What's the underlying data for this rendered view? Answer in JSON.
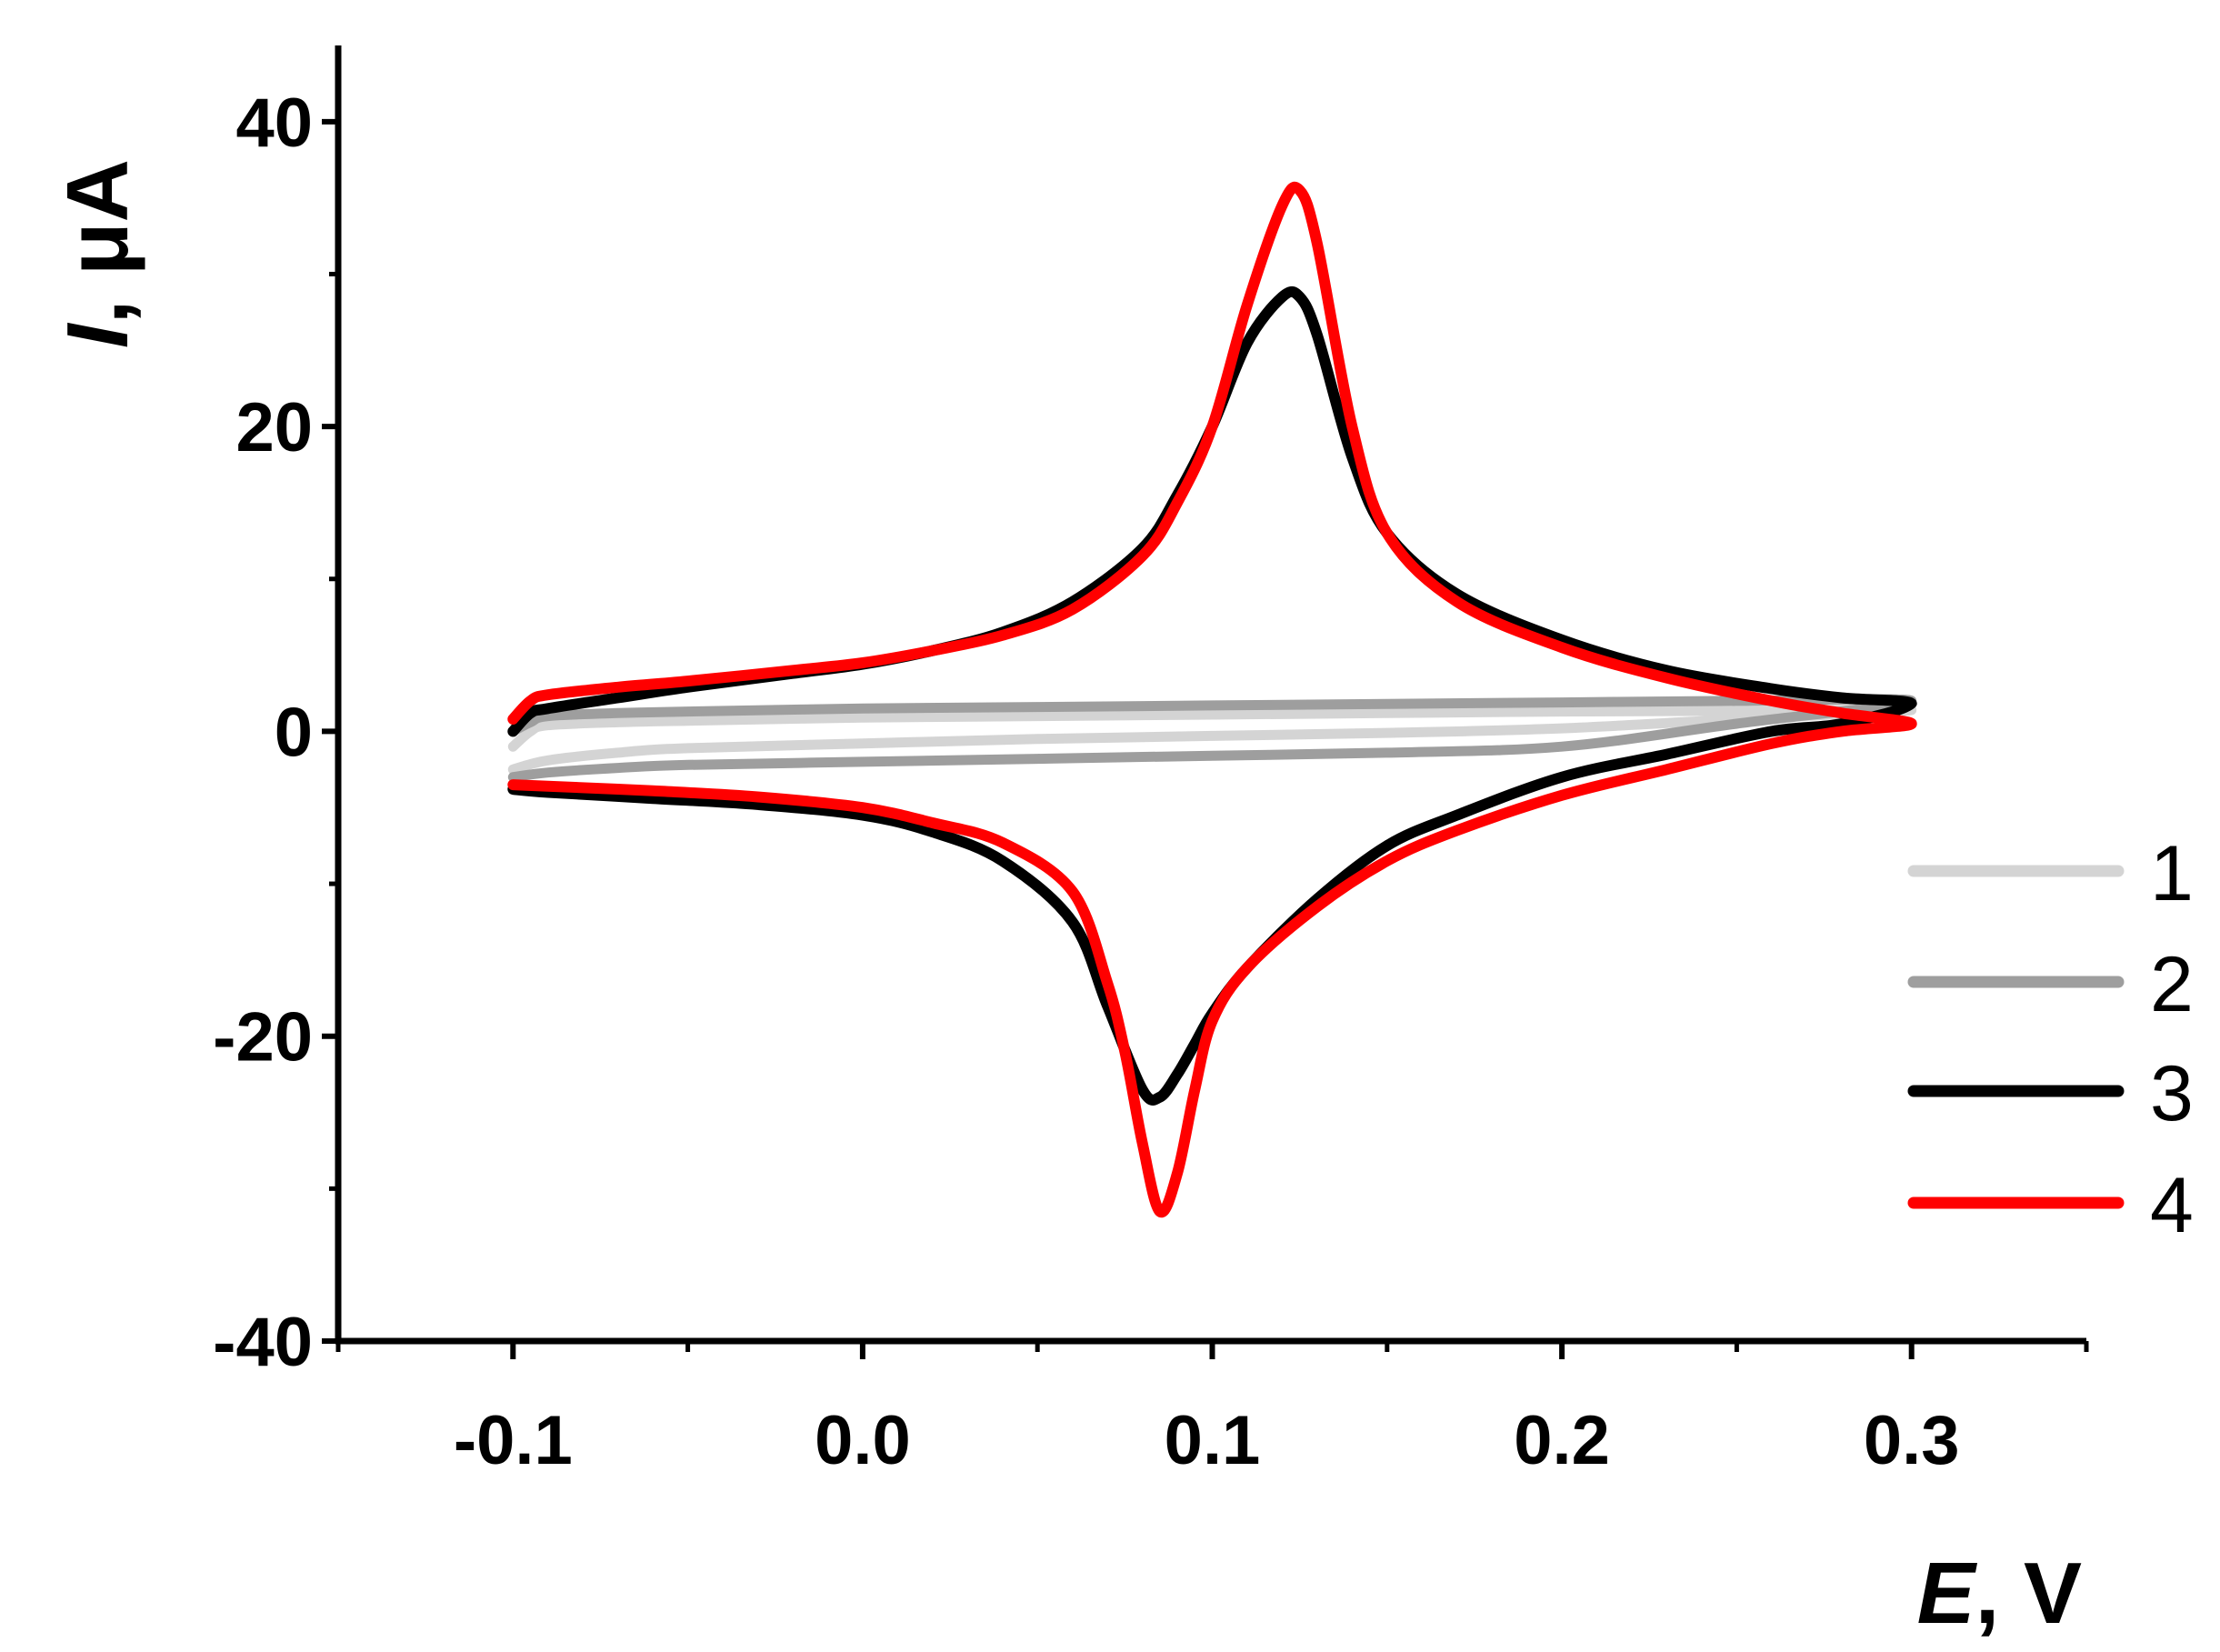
{
  "chart_data": {
    "type": "line",
    "title": "",
    "xlabel_symbol": "E",
    "xlabel_unit": ", V",
    "ylabel_symbol": "I",
    "ylabel_unit": ", μA",
    "xlim": [
      -0.15,
      0.35
    ],
    "ylim": [
      -40,
      45
    ],
    "x_ticks": [
      -0.1,
      0.0,
      0.1,
      0.2,
      0.3
    ],
    "x_tick_labels": [
      "-0.1",
      "0.0",
      "0.1",
      "0.2",
      "0.3"
    ],
    "y_ticks": [
      -40,
      -20,
      0,
      20,
      40
    ],
    "y_tick_labels": [
      "-40",
      "-20",
      "0",
      "20",
      "40"
    ],
    "grid": false,
    "legend_position": "right",
    "series": [
      {
        "name": "1",
        "color": "#d4d4d4",
        "x": [
          -0.1,
          -0.095,
          -0.09,
          -0.07,
          -0.05,
          0.0,
          0.05,
          0.1,
          0.15,
          0.2,
          0.25,
          0.3,
          0.25,
          0.2,
          0.15,
          0.1,
          0.05,
          0.0,
          -0.05,
          -0.07,
          -0.09,
          -0.1
        ],
        "y": [
          -1.0,
          0.0,
          0.4,
          0.6,
          0.7,
          0.9,
          1.0,
          1.1,
          1.2,
          1.3,
          1.35,
          1.4,
          0.8,
          0.2,
          -0.1,
          -0.3,
          -0.5,
          -0.8,
          -1.1,
          -1.4,
          -1.9,
          -2.5
        ]
      },
      {
        "name": "2",
        "color": "#9e9e9e",
        "x": [
          -0.1,
          -0.095,
          -0.09,
          -0.07,
          -0.05,
          0.0,
          0.05,
          0.1,
          0.15,
          0.2,
          0.25,
          0.3,
          0.25,
          0.2,
          0.15,
          0.1,
          0.05,
          0.0,
          -0.05,
          -0.07,
          -0.09,
          -0.1
        ],
        "y": [
          0.0,
          0.6,
          1.0,
          1.2,
          1.3,
          1.5,
          1.6,
          1.7,
          1.8,
          1.9,
          2.0,
          2.0,
          0.5,
          -1.0,
          -1.4,
          -1.6,
          -1.8,
          -2.0,
          -2.2,
          -2.4,
          -2.7,
          -3.0
        ]
      },
      {
        "name": "3",
        "color": "#000000",
        "x": [
          -0.1,
          -0.095,
          -0.09,
          -0.07,
          -0.05,
          -0.02,
          0.0,
          0.02,
          0.04,
          0.06,
          0.08,
          0.09,
          0.1,
          0.11,
          0.12,
          0.125,
          0.13,
          0.14,
          0.15,
          0.17,
          0.2,
          0.23,
          0.26,
          0.28,
          0.3,
          0.28,
          0.26,
          0.23,
          0.2,
          0.17,
          0.15,
          0.13,
          0.11,
          0.1,
          0.095,
          0.09,
          0.085,
          0.08,
          0.07,
          0.06,
          0.04,
          0.02,
          0.0,
          -0.03,
          -0.06,
          -0.09,
          -0.1
        ],
        "y": [
          0.0,
          1.2,
          1.5,
          2.2,
          2.9,
          3.8,
          4.4,
          5.3,
          6.5,
          8.5,
          12.0,
          15.5,
          20.0,
          25.5,
          28.5,
          28.5,
          26.0,
          18.0,
          13.0,
          9.0,
          6.0,
          4.0,
          2.8,
          2.2,
          1.8,
          0.5,
          0.0,
          -1.5,
          -3.0,
          -5.5,
          -7.5,
          -11.0,
          -15.5,
          -18.5,
          -20.5,
          -22.5,
          -24.0,
          -23.5,
          -18.0,
          -12.5,
          -8.5,
          -6.6,
          -5.5,
          -4.8,
          -4.4,
          -4.0,
          -3.8
        ]
      },
      {
        "name": "4",
        "color": "#ff0000",
        "x": [
          -0.1,
          -0.095,
          -0.09,
          -0.07,
          -0.05,
          -0.02,
          0.0,
          0.02,
          0.04,
          0.06,
          0.08,
          0.09,
          0.1,
          0.11,
          0.12,
          0.125,
          0.13,
          0.14,
          0.15,
          0.17,
          0.2,
          0.23,
          0.26,
          0.28,
          0.3,
          0.28,
          0.26,
          0.23,
          0.2,
          0.17,
          0.15,
          0.13,
          0.11,
          0.1,
          0.095,
          0.09,
          0.085,
          0.08,
          0.075,
          0.07,
          0.06,
          0.04,
          0.02,
          0.0,
          -0.03,
          -0.06,
          -0.09,
          -0.1
        ],
        "y": [
          0.8,
          2.0,
          2.4,
          2.9,
          3.3,
          4.0,
          4.5,
          5.3,
          6.3,
          8.0,
          11.5,
          15.0,
          20.0,
          28.0,
          34.5,
          35.5,
          32.0,
          20.0,
          13.0,
          8.5,
          5.5,
          3.5,
          2.0,
          1.2,
          0.5,
          0.0,
          -0.8,
          -2.5,
          -4.2,
          -6.5,
          -8.5,
          -11.5,
          -15.5,
          -19.0,
          -23.5,
          -29.0,
          -31.5,
          -27.0,
          -21.0,
          -16.5,
          -10.5,
          -7.3,
          -6.0,
          -5.0,
          -4.3,
          -3.9,
          -3.6,
          -3.5
        ]
      }
    ]
  }
}
